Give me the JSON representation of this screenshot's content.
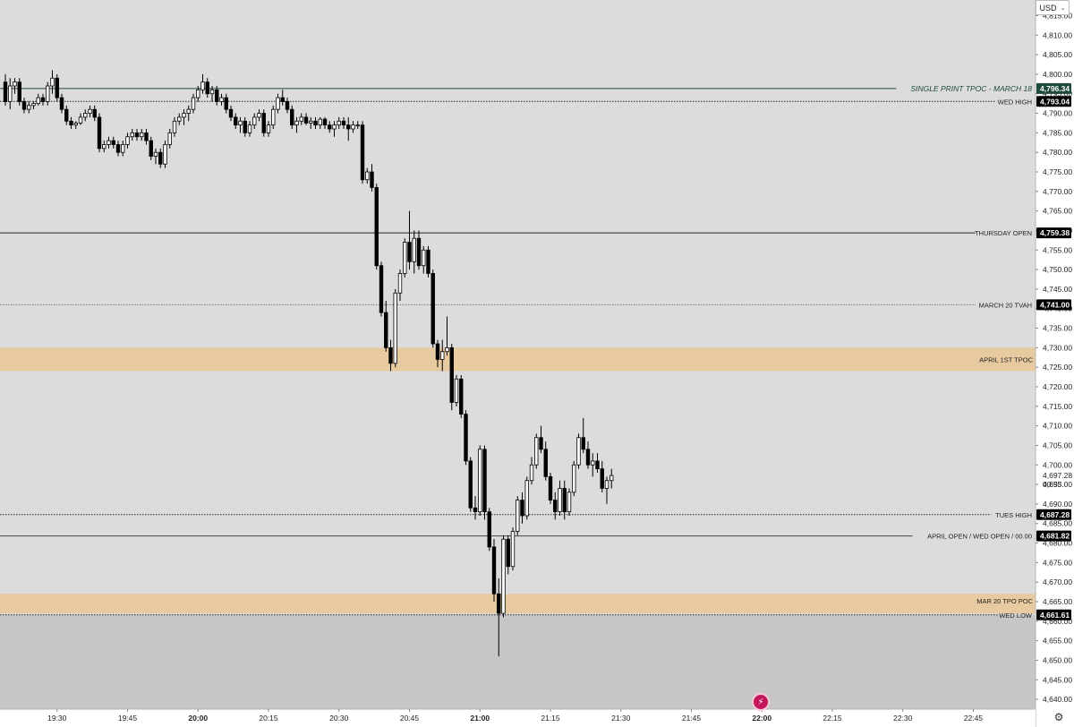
{
  "currency": "USD",
  "chart_data": {
    "type": "candlestick",
    "price_range": [
      4637.5,
      4819
    ],
    "price_ticks": [
      4815,
      4810,
      4805,
      4800,
      4795,
      4790,
      4785,
      4780,
      4775,
      4770,
      4765,
      4760,
      4755,
      4750,
      4745,
      4740,
      4735,
      4730,
      4725,
      4720,
      4715,
      4710,
      4705,
      4700,
      4695,
      4690,
      4685,
      4680,
      4675,
      4670,
      4665,
      4660,
      4655,
      4650,
      4645,
      4640
    ],
    "time_ticks": [
      {
        "label": "19:30",
        "bold": false
      },
      {
        "label": "19:45",
        "bold": false
      },
      {
        "label": "20:00",
        "bold": true
      },
      {
        "label": "20:15",
        "bold": false
      },
      {
        "label": "20:30",
        "bold": false
      },
      {
        "label": "20:45",
        "bold": false
      },
      {
        "label": "21:00",
        "bold": true
      },
      {
        "label": "21:15",
        "bold": false
      },
      {
        "label": "21:30",
        "bold": false
      },
      {
        "label": "21:45",
        "bold": false
      },
      {
        "label": "22:00",
        "bold": true
      },
      {
        "label": "22:15",
        "bold": false
      },
      {
        "label": "22:30",
        "bold": false
      },
      {
        "label": "22:45",
        "bold": false
      }
    ],
    "start_time": "19:19",
    "bar_minutes": 1,
    "ohlc": [
      [
        4798,
        4800,
        4792,
        4793
      ],
      [
        4793,
        4799,
        4791,
        4797
      ],
      [
        4797,
        4799,
        4795,
        4798
      ],
      [
        4798,
        4799,
        4792,
        4793
      ],
      [
        4793,
        4794,
        4790,
        4791
      ],
      [
        4791,
        4793,
        4790,
        4792
      ],
      [
        4792,
        4793,
        4791,
        4792.5
      ],
      [
        4792.5,
        4795,
        4792,
        4794
      ],
      [
        4794,
        4795,
        4792,
        4793
      ],
      [
        4793,
        4798,
        4792,
        4797
      ],
      [
        4797,
        4801,
        4795,
        4799
      ],
      [
        4799,
        4800,
        4793,
        4794
      ],
      [
        4794,
        4795,
        4790,
        4791
      ],
      [
        4791,
        4792,
        4787,
        4788
      ],
      [
        4788,
        4789,
        4786,
        4787
      ],
      [
        4787,
        4788,
        4786,
        4787.5
      ],
      [
        4787.5,
        4790,
        4787,
        4789
      ],
      [
        4789,
        4791,
        4788,
        4790
      ],
      [
        4790,
        4792,
        4789,
        4791
      ],
      [
        4791,
        4792,
        4788,
        4789
      ],
      [
        4789,
        4790,
        4780,
        4781
      ],
      [
        4781,
        4783,
        4780,
        4782
      ],
      [
        4782,
        4784,
        4781,
        4783
      ],
      [
        4783,
        4784,
        4781,
        4782
      ],
      [
        4782,
        4783,
        4779,
        4780
      ],
      [
        4780,
        4783,
        4779,
        4782
      ],
      [
        4782,
        4785,
        4781,
        4784
      ],
      [
        4784,
        4786,
        4783,
        4785
      ],
      [
        4785,
        4786,
        4783,
        4784
      ],
      [
        4784,
        4786,
        4783,
        4785
      ],
      [
        4785,
        4786,
        4782,
        4783
      ],
      [
        4783,
        4784,
        4778,
        4779
      ],
      [
        4779,
        4781,
        4777,
        4780
      ],
      [
        4780,
        4781,
        4776,
        4777
      ],
      [
        4777,
        4783,
        4776,
        4782
      ],
      [
        4782,
        4786,
        4781,
        4785
      ],
      [
        4785,
        4789,
        4784,
        4788
      ],
      [
        4788,
        4790,
        4787,
        4789
      ],
      [
        4789,
        4791,
        4787,
        4790
      ],
      [
        4790,
        4792,
        4788,
        4791
      ],
      [
        4791,
        4795,
        4790,
        4794
      ],
      [
        4794,
        4797,
        4793,
        4796
      ],
      [
        4796,
        4800,
        4795,
        4798
      ],
      [
        4798,
        4799,
        4794,
        4795
      ],
      [
        4795,
        4797,
        4793,
        4796
      ],
      [
        4796,
        4797,
        4792,
        4793
      ],
      [
        4793,
        4795,
        4792,
        4794
      ],
      [
        4794,
        4795,
        4790,
        4791
      ],
      [
        4791,
        4792,
        4788,
        4789
      ],
      [
        4789,
        4790,
        4786,
        4787
      ],
      [
        4787,
        4789,
        4785,
        4788
      ],
      [
        4788,
        4789,
        4784,
        4785
      ],
      [
        4785,
        4788,
        4784,
        4787
      ],
      [
        4787,
        4790,
        4786,
        4789
      ],
      [
        4789,
        4791,
        4788,
        4790
      ],
      [
        4790,
        4791,
        4784,
        4785
      ],
      [
        4785,
        4788,
        4784,
        4787
      ],
      [
        4787,
        4792,
        4786,
        4791
      ],
      [
        4791,
        4795,
        4790,
        4794
      ],
      [
        4794,
        4796,
        4792,
        4793
      ],
      [
        4793,
        4794,
        4790,
        4791
      ],
      [
        4791,
        4792,
        4786,
        4787
      ],
      [
        4787,
        4789,
        4785,
        4788
      ],
      [
        4788,
        4790,
        4787,
        4789
      ],
      [
        4789,
        4790,
        4787,
        4787.5
      ],
      [
        4787.5,
        4789,
        4786,
        4788
      ],
      [
        4788,
        4789,
        4786,
        4787
      ],
      [
        4787,
        4789,
        4786,
        4788.5
      ],
      [
        4788.5,
        4789,
        4786,
        4787
      ],
      [
        4787,
        4788,
        4785,
        4786
      ],
      [
        4786,
        4788,
        4784,
        4787
      ],
      [
        4787,
        4789,
        4786,
        4788
      ],
      [
        4788,
        4789,
        4786,
        4787
      ],
      [
        4787,
        4789,
        4783,
        4786
      ],
      [
        4786,
        4788,
        4785,
        4787
      ],
      [
        4787,
        4788,
        4786,
        4787
      ],
      [
        4787,
        4788,
        4772,
        4773
      ],
      [
        4773,
        4776,
        4772,
        4775
      ],
      [
        4775,
        4777,
        4770,
        4771
      ],
      [
        4771,
        4772,
        4750,
        4751
      ],
      [
        4751,
        4752,
        4738,
        4739
      ],
      [
        4739,
        4742,
        4729,
        4730
      ],
      [
        4730,
        4732,
        4724,
        4726
      ],
      [
        4726,
        4745,
        4725,
        4744
      ],
      [
        4744,
        4750,
        4742,
        4749
      ],
      [
        4749,
        4758,
        4748,
        4757
      ],
      [
        4757,
        4765,
        4750,
        4752
      ],
      [
        4752,
        4760,
        4749,
        4758
      ],
      [
        4758,
        4760,
        4750,
        4751
      ],
      [
        4751,
        4756,
        4749,
        4755
      ],
      [
        4755,
        4756,
        4748,
        4749
      ],
      [
        4749,
        4750,
        4730,
        4731
      ],
      [
        4731,
        4732,
        4725,
        4727
      ],
      [
        4727,
        4732,
        4724,
        4729
      ],
      [
        4729,
        4738,
        4728,
        4730
      ],
      [
        4730,
        4731,
        4714,
        4716
      ],
      [
        4716,
        4723,
        4715,
        4722
      ],
      [
        4722,
        4723,
        4712,
        4713
      ],
      [
        4713,
        4714,
        4700,
        4701
      ],
      [
        4701,
        4702,
        4688,
        4689
      ],
      [
        4689,
        4692,
        4686,
        4688
      ],
      [
        4688,
        4705,
        4687,
        4704
      ],
      [
        4704,
        4705,
        4686,
        4688
      ],
      [
        4688,
        4689,
        4678,
        4679
      ],
      [
        4679,
        4681,
        4665,
        4667
      ],
      [
        4667,
        4671,
        4651,
        4662
      ],
      [
        4662,
        4682,
        4661,
        4681
      ],
      [
        4681,
        4682,
        4672,
        4674
      ],
      [
        4674,
        4684,
        4673,
        4683
      ],
      [
        4683,
        4692,
        4682,
        4691
      ],
      [
        4691,
        4693,
        4685,
        4687
      ],
      [
        4687,
        4697,
        4686,
        4696
      ],
      [
        4696,
        4702,
        4695,
        4700
      ],
      [
        4700,
        4708,
        4699,
        4707
      ],
      [
        4707,
        4710,
        4703,
        4704
      ],
      [
        4704,
        4706,
        4696,
        4697
      ],
      [
        4697,
        4698,
        4690,
        4691
      ],
      [
        4691,
        4693,
        4686,
        4688
      ],
      [
        4688,
        4696,
        4687,
        4694
      ],
      [
        4694,
        4696,
        4686,
        4688
      ],
      [
        4688,
        4694,
        4687,
        4693
      ],
      [
        4693,
        4701,
        4692,
        4700
      ],
      [
        4700,
        4708,
        4699,
        4707
      ],
      [
        4707,
        4712,
        4703,
        4704
      ],
      [
        4704,
        4706,
        4699,
        4700
      ],
      [
        4700,
        4703,
        4697,
        4701
      ],
      [
        4701,
        4703,
        4698,
        4699
      ],
      [
        4699,
        4701,
        4693,
        4694
      ],
      [
        4694,
        4697,
        4690,
        4696
      ],
      [
        4696,
        4699,
        4694,
        4697.28
      ]
    ],
    "levels": [
      {
        "price": 4796.34,
        "label": "SINGLE PRINT TPOC - MARCH 18",
        "value": "4,796.34",
        "style": "solid",
        "color": "#1d4a3a",
        "badge": "#1d4a3a",
        "big": true
      },
      {
        "price": 4793.04,
        "label": "WED HIGH",
        "value": "4,793.04",
        "style": "dotted",
        "color": "#222222",
        "badge": "#000000",
        "big": false
      },
      {
        "price": 4759.38,
        "label": "THURSDAY OPEN",
        "value": "4,759.38",
        "style": "solid",
        "color": "#222222",
        "badge": "#000000",
        "big": false
      },
      {
        "price": 4741.0,
        "label": "MARCH 20 TVAH",
        "value": "4,741.00",
        "style": "dotted",
        "color": "#777777",
        "badge": "#000000",
        "big": false
      },
      {
        "price": 4687.28,
        "label": "TUES HIGH",
        "value": "4,687.28",
        "style": "dotted",
        "color": "#222222",
        "badge": "#000000",
        "big": false
      },
      {
        "price": 4681.82,
        "label": "APRIL OPEN / WED OPEN / 00.00",
        "value": "4,681.82",
        "style": "solid",
        "color": "#444444",
        "badge": "#000000",
        "big": false
      },
      {
        "price": 4661.61,
        "label": "WED LOW",
        "value": "4,661.61",
        "style": "dotted",
        "color": "#222222",
        "badge": "#000000",
        "big": false
      }
    ],
    "zones": [
      {
        "from": 4724,
        "to": 4730,
        "label": "APRIL 1ST TPOC",
        "color": "#e8c89c"
      },
      {
        "from": 4662,
        "to": 4667,
        "label": "MAR 20 TPO POC",
        "color": "#e8c89c"
      }
    ],
    "lower_zone": {
      "below": 4661.61,
      "color": "#c6c6c6"
    },
    "last_price": {
      "value": "4,697.28",
      "countdown": "00:53"
    }
  }
}
